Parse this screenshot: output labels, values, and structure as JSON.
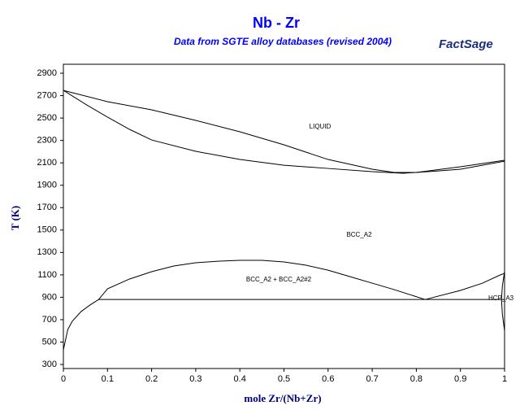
{
  "logo": "FactSage",
  "chart_data": {
    "type": "line",
    "title": "Nb - Zr",
    "subtitle": "Data from SGTE alloy databases (revised 2004)",
    "x_label": "mole Zr/(Nb+Zr)",
    "y_label": "T (K)",
    "xlim": [
      0,
      1
    ],
    "ylim": [
      264,
      2980
    ],
    "xticks": [
      0,
      0.1,
      0.2,
      0.3,
      0.4,
      0.5,
      0.6,
      0.7,
      0.8,
      0.9,
      1
    ],
    "yticks": [
      300,
      500,
      700,
      900,
      1100,
      1300,
      1500,
      1700,
      1900,
      2100,
      2300,
      2500,
      2700,
      2900
    ],
    "annotations": [
      "LIQUID",
      "BCC_A2",
      "BCC_A2 + BCC_A2#2",
      "HCP_A3"
    ],
    "series": [
      {
        "color": "#000000",
        "x": [
          0,
          0.1,
          0.2,
          0.3,
          0.4,
          0.5,
          0.6,
          0.7,
          0.75,
          0.8,
          0.9,
          1.0
        ],
        "values": [
          2747,
          2646,
          2573,
          2479,
          2377,
          2261,
          2130,
          2043,
          2014,
          2014,
          2065,
          2123
        ]
      },
      {
        "color": "#000000",
        "x": [
          0,
          0.05,
          0.1,
          0.15,
          0.2,
          0.3,
          0.4,
          0.5,
          0.6,
          0.7,
          0.77,
          0.85,
          0.9,
          1.0
        ],
        "values": [
          2747,
          2624,
          2508,
          2399,
          2304,
          2203,
          2130,
          2079,
          2050,
          2021,
          2007,
          2028,
          2043,
          2115
        ]
      },
      {
        "color": "#000000",
        "x": [
          0.08,
          0.1,
          0.15,
          0.2,
          0.25,
          0.3,
          0.35,
          0.4,
          0.45,
          0.5,
          0.55,
          0.6,
          0.65,
          0.7,
          0.75,
          0.82
        ],
        "values": [
          880,
          975,
          1063,
          1128,
          1179,
          1208,
          1222,
          1230,
          1230,
          1215,
          1186,
          1142,
          1084,
          1026,
          968,
          880
        ]
      },
      {
        "color": "#000000",
        "x": [
          0.82,
          0.9,
          0.95,
          0.99,
          1.0
        ],
        "values": [
          880,
          961,
          1026,
          1099,
          1113
        ]
      },
      {
        "color": "#000000",
        "x": [
          0,
          0.01,
          0.02,
          0.04,
          0.06,
          0.08
        ],
        "values": [
          430,
          612,
          685,
          772,
          830,
          880
        ]
      },
      {
        "color": "#000000",
        "x": [
          0.08,
          1.0
        ],
        "values": [
          880,
          880
        ]
      },
      {
        "color": "#000000",
        "x": [
          1.0,
          0.995,
          0.993,
          0.995,
          1.0
        ],
        "values": [
          1130,
          1000,
          880,
          750,
          600
        ]
      }
    ]
  }
}
